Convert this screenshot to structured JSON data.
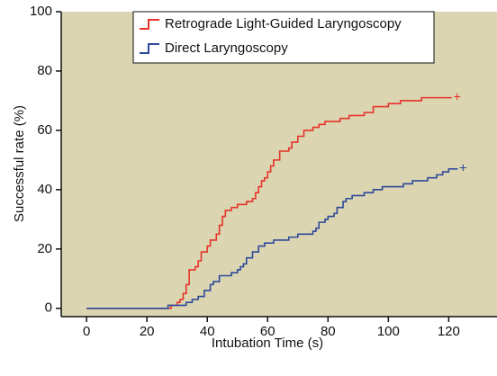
{
  "chart_data": {
    "type": "step",
    "x_label": "Intubation Time (s)",
    "y_label": "Successful rate (%)",
    "xlim": [
      -8.4,
      136
    ],
    "ylim": [
      -2.8,
      100
    ],
    "xticks": [
      0,
      20,
      40,
      60,
      80,
      100,
      120
    ],
    "yticks": [
      0,
      20,
      40,
      60,
      80,
      100
    ],
    "background": "#dbd5b1",
    "legend": "upper center",
    "censor_marker": "+",
    "series": [
      {
        "name": "Retrograde Light-Guided Laryngoscopy",
        "color": "#e6332a",
        "x": [
          0,
          28,
          30,
          31,
          32,
          33,
          34,
          36,
          37,
          38,
          40,
          41,
          43,
          44,
          45,
          46,
          48,
          50,
          53,
          55,
          56,
          57,
          58,
          59,
          60,
          61,
          62,
          64,
          67,
          68,
          70,
          72,
          75,
          77,
          79,
          84,
          87,
          92,
          95,
          100,
          104,
          111,
          121
        ],
        "values": [
          0,
          1,
          2,
          3,
          5,
          8,
          13,
          14,
          16,
          19,
          21,
          23,
          25,
          28,
          31,
          33,
          34,
          35,
          36,
          37,
          39,
          41,
          43,
          44,
          46,
          48,
          50,
          53,
          54,
          56,
          58,
          60,
          61,
          62,
          63,
          64,
          65,
          66,
          68,
          69,
          70,
          71,
          71
        ]
      },
      {
        "name": "Direct Laryngoscopy",
        "color": "#2d4a9b",
        "x": [
          0,
          27,
          33,
          35,
          37,
          39,
          41,
          42,
          44,
          48,
          50,
          51,
          52,
          53,
          55,
          57,
          59,
          62,
          67,
          70,
          75,
          76,
          77,
          79,
          80,
          82,
          83,
          85,
          86,
          88,
          92,
          95,
          98,
          105,
          108,
          113,
          116,
          118,
          120,
          123
        ],
        "values": [
          0,
          1,
          2,
          3,
          4,
          6,
          8,
          9,
          11,
          12,
          13,
          14,
          15,
          17,
          19,
          21,
          22,
          23,
          24,
          25,
          26,
          27,
          29,
          30,
          31,
          32,
          34,
          36,
          37,
          38,
          39,
          40,
          41,
          42,
          43,
          44,
          45,
          46,
          47,
          47
        ]
      }
    ]
  }
}
